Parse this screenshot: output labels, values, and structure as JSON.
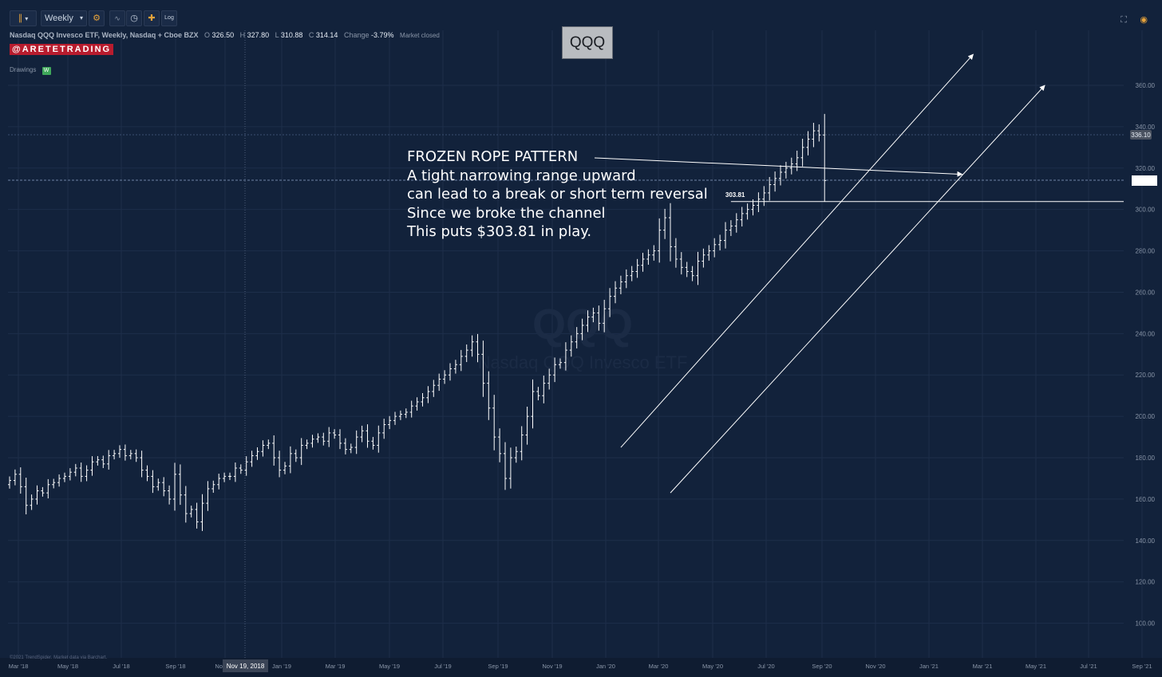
{
  "toolbar": {
    "interval_label": "Weekly",
    "buttons": [
      "bars-icon",
      "settings-icon",
      "indicator-icon",
      "clock-icon",
      "crosshair-icon",
      "log-icon"
    ],
    "log_label": "Log",
    "right_icons": [
      "fullscreen-icon",
      "camera-icon"
    ]
  },
  "header": {
    "symbol_desc": "Nasdaq QQQ Invesco ETF, Weekly, Nasdaq + Cboe BZX",
    "o_label": "O",
    "o_value": "326.50",
    "h_label": "H",
    "h_value": "327.80",
    "l_label": "L",
    "l_value": "310.88",
    "c_label": "C",
    "c_value": "314.14",
    "change_label": "Change",
    "change_value": "-3.79%",
    "market_status": "Market closed",
    "brand": "@ARETETRADING",
    "drawings_label": "Drawings",
    "drawings_badge": "W",
    "ticker_box": "QQQ"
  },
  "annotation": {
    "lines": [
      "FROZEN ROPE PATTERN",
      "A tight narrowing range upward",
      "can lead to a break or short term reversal",
      "Since we broke the channel",
      "This puts $303.81 in play."
    ]
  },
  "watermark": {
    "symbol": "QQQ",
    "name": "Nasdaq QQQ Invesco ETF"
  },
  "footer": {
    "credit": "©2021 TrendSpider. Market data via Barchart.",
    "crosshair_date": "Nov 19, 2018"
  },
  "colors": {
    "background": "#12223b",
    "bars": "#ffffff",
    "brand": "#b81c2e",
    "grid": "#1d2e4a"
  },
  "chart_data": {
    "type": "ohlc",
    "title": "Nasdaq QQQ Invesco ETF, Weekly",
    "x_ticks": [
      "Mar '18",
      "May '18",
      "Jul '18",
      "Sep '18",
      "Nov '18",
      "Jan '19",
      "Mar '19",
      "May '19",
      "Jul '19",
      "Sep '19",
      "Nov '19",
      "Jan '20",
      "Mar '20",
      "May '20",
      "Jul '20",
      "Sep '20",
      "Nov '20",
      "Jan '21",
      "Mar '21",
      "May '21",
      "Jul '21",
      "Sep '21"
    ],
    "y_ticks": [
      100,
      120,
      140,
      160,
      180,
      200,
      220,
      240,
      260,
      280,
      300,
      320,
      340,
      360
    ],
    "y_tick_labels": [
      "100.00",
      "120.00",
      "140.00",
      "160.00",
      "180.00",
      "200.00",
      "220.00",
      "240.00",
      "260.00",
      "280.00",
      "300.00",
      "320.00",
      "340.00",
      "360.00"
    ],
    "ylim": [
      90,
      375
    ],
    "x_range_weeks": [
      0,
      187
    ],
    "scale": "linear",
    "grid": true,
    "last_price_label": "336.10",
    "last_price": 336.1,
    "current_price": 314.14,
    "level_label": "303.81",
    "level": 303.81,
    "level_start_week": 131,
    "weekly_closes": [
      169,
      172,
      166,
      157,
      160,
      164,
      163,
      167,
      168,
      170,
      171,
      173,
      175,
      171,
      174,
      178,
      179,
      177,
      181,
      182,
      184,
      181,
      182,
      180,
      174,
      171,
      166,
      168,
      164,
      160,
      172,
      162,
      153,
      155,
      149,
      158,
      165,
      167,
      170,
      171,
      171,
      175,
      174,
      178,
      181,
      183,
      186,
      187,
      180,
      174,
      176,
      182,
      180,
      186,
      187,
      189,
      190,
      188,
      192,
      191,
      187,
      184,
      185,
      190,
      193,
      188,
      186,
      192,
      196,
      198,
      200,
      201,
      202,
      205,
      207,
      209,
      212,
      215,
      218,
      220,
      223,
      225,
      229,
      232,
      236,
      230,
      216,
      204,
      190,
      182,
      170,
      180,
      183,
      191,
      200,
      212,
      210,
      216,
      220,
      225,
      226,
      232,
      236,
      240,
      244,
      248,
      250,
      245,
      252,
      258,
      262,
      265,
      268,
      270,
      273,
      276,
      278,
      280,
      290,
      296,
      282,
      276,
      272,
      270,
      268,
      275,
      278,
      280,
      283,
      285,
      290,
      292,
      295,
      298,
      300,
      302,
      305,
      308,
      312,
      315,
      318,
      320,
      322,
      325,
      330,
      334,
      338,
      336,
      314
    ],
    "channel_upper": {
      "start_week": 111,
      "start_value": 185,
      "end_week": 175,
      "end_value": 375
    },
    "channel_lower": {
      "start_week": 120,
      "start_value": 163,
      "end_week": 188,
      "end_value": 360
    },
    "annotation_arrow": {
      "to_week": 173,
      "to_value": 317
    }
  }
}
